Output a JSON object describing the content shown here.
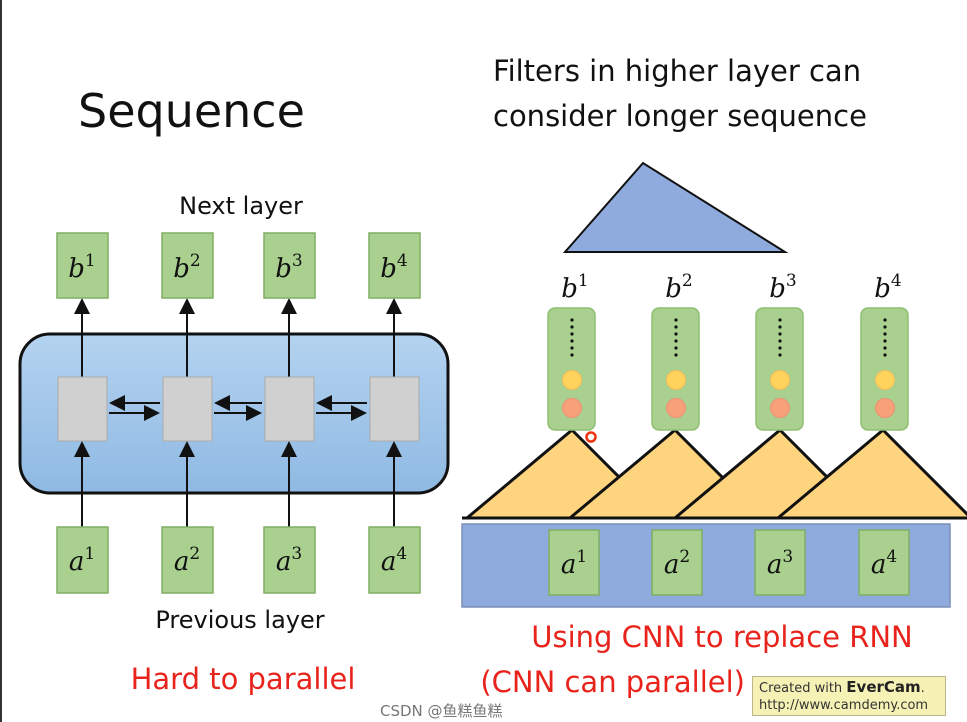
{
  "left": {
    "title": "Sequence",
    "next_layer": "Next layer",
    "previous_layer": "Previous layer",
    "caption": "Hard to parallel",
    "outputs": [
      {
        "v": "b",
        "s": "1"
      },
      {
        "v": "b",
        "s": "2"
      },
      {
        "v": "b",
        "s": "3"
      },
      {
        "v": "b",
        "s": "4"
      }
    ],
    "inputs": [
      {
        "v": "a",
        "s": "1"
      },
      {
        "v": "a",
        "s": "2"
      },
      {
        "v": "a",
        "s": "3"
      },
      {
        "v": "a",
        "s": "4"
      }
    ]
  },
  "right": {
    "heading_line1": "Filters in higher layer can",
    "heading_line2": "consider longer sequence",
    "outputs": [
      {
        "v": "b",
        "s": "1"
      },
      {
        "v": "b",
        "s": "2"
      },
      {
        "v": "b",
        "s": "3"
      },
      {
        "v": "b",
        "s": "4"
      }
    ],
    "inputs": [
      {
        "v": "a",
        "s": "1"
      },
      {
        "v": "a",
        "s": "2"
      },
      {
        "v": "a",
        "s": "3"
      },
      {
        "v": "a",
        "s": "4"
      }
    ],
    "caption_line1": "Using CNN to replace RNN",
    "caption_line2": "(CNN can parallel)"
  },
  "watermark": {
    "line1_prefix": "Created with ",
    "line1_brand": "EverCam",
    "line1_suffix": ".",
    "line2": "http://www.camdemy.com",
    "overlay": "CSDN @鱼糕鱼糕"
  },
  "colors": {
    "green": "#a9d08e",
    "blue": "#9dc3e6",
    "filter_blue": "#8faadc",
    "orange_filter": "#ffd47f",
    "red_text": "#e8231c"
  }
}
